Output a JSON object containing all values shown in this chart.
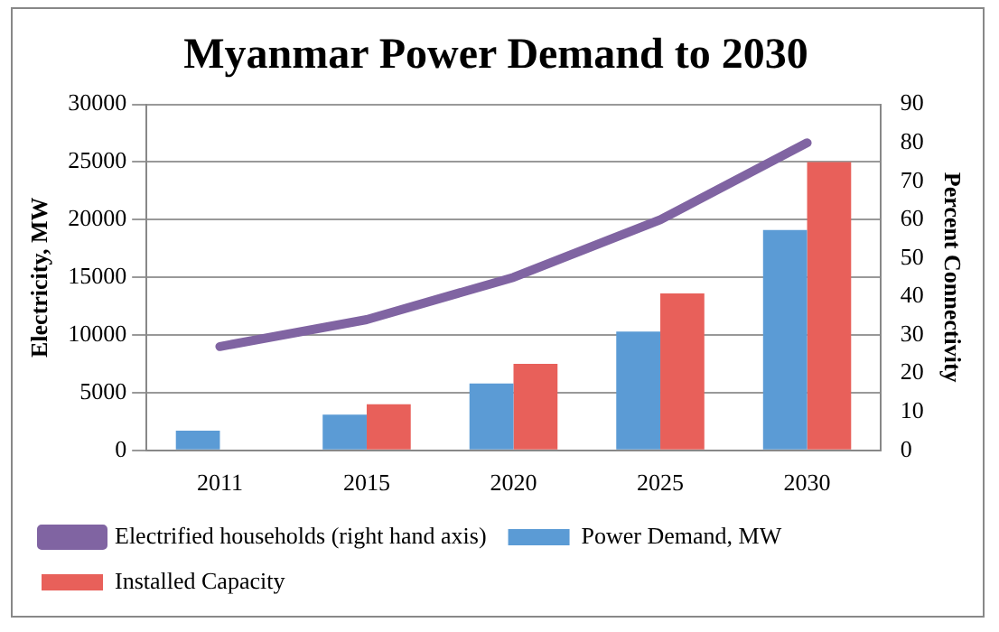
{
  "chart_data": {
    "type": "bar",
    "title": "Myanmar Power Demand to 2030",
    "ylabel": "Electricity, MW",
    "y2label": "Percent Connectivity",
    "categories": [
      "2011",
      "2015",
      "2020",
      "2025",
      "2030"
    ],
    "series": [
      {
        "name": "Power Demand, MW",
        "color": "#5b9bd5",
        "values": [
          1700,
          3100,
          5800,
          10300,
          19100
        ]
      },
      {
        "name": "Installed Capacity",
        "color": "#e8605a",
        "values": [
          null,
          4000,
          7500,
          13600,
          25000
        ]
      },
      {
        "name": "Electrified households (right hand axis)",
        "type": "line",
        "axis": "y2",
        "color": "#8064a2",
        "values": [
          27,
          34,
          45,
          60,
          80
        ]
      }
    ],
    "ylim": [
      0,
      30000
    ],
    "yticks": [
      0,
      5000,
      10000,
      15000,
      20000,
      25000,
      30000
    ],
    "y2lim": [
      0,
      90
    ],
    "y2ticks": [
      0,
      10,
      20,
      30,
      40,
      50,
      60,
      70,
      80,
      90
    ],
    "grid": "y",
    "legend": "bottom",
    "marker": "none"
  }
}
